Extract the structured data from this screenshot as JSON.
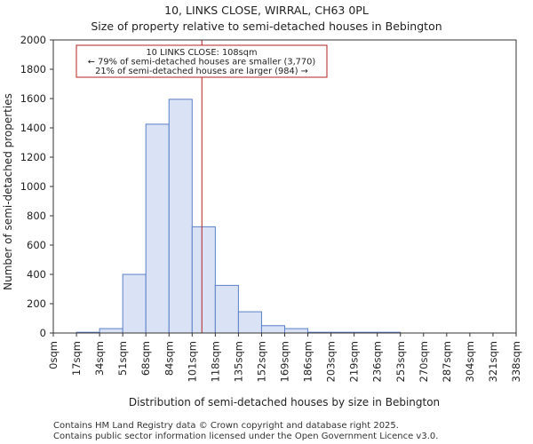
{
  "chart_data": {
    "type": "bar",
    "title": "10, LINKS CLOSE, WIRRAL, CH63 0PL",
    "subtitle": "Size of property relative to semi-detached houses in Bebington",
    "xlabel": "Distribution of semi-detached houses by size in Bebington",
    "ylabel": "Number of semi-detached properties",
    "x_tick_labels": [
      "0sqm",
      "17sqm",
      "34sqm",
      "51sqm",
      "68sqm",
      "84sqm",
      "101sqm",
      "118sqm",
      "135sqm",
      "152sqm",
      "169sqm",
      "186sqm",
      "203sqm",
      "219sqm",
      "236sqm",
      "253sqm",
      "270sqm",
      "287sqm",
      "304sqm",
      "321sqm",
      "338sqm"
    ],
    "y_ticks": [
      0,
      200,
      400,
      600,
      800,
      1000,
      1200,
      1400,
      1600,
      1800,
      2000
    ],
    "ylim": [
      0,
      2000
    ],
    "bin_count": 20,
    "values": [
      0,
      5,
      30,
      400,
      1425,
      1595,
      725,
      325,
      145,
      50,
      30,
      5,
      5,
      5,
      5,
      0,
      0,
      0,
      0,
      0
    ],
    "bar_color": "#dae3f5",
    "bar_edge_color": "#5b7fc8",
    "marker": {
      "value_sqm": 108,
      "bin_position": 6.42,
      "color": "#b22222",
      "label_line1": "10 LINKS CLOSE: 108sqm",
      "label_line2": "← 79% of semi-detached houses are smaller (3,770)",
      "label_line3": "21% of semi-detached houses are larger (984) →"
    },
    "grid": false
  },
  "footer": {
    "line1": "Contains HM Land Registry data © Crown copyright and database right 2025.",
    "line2": "Contains public sector information licensed under the Open Government Licence v3.0."
  }
}
